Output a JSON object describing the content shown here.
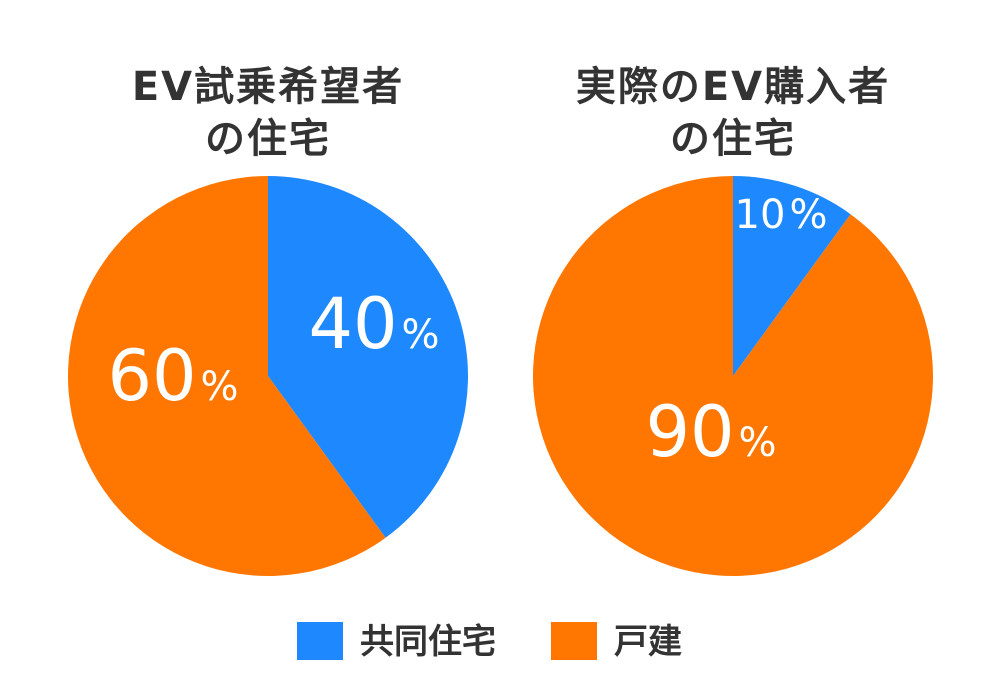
{
  "legend": [
    {
      "label": "共同住宅",
      "color": "#1e88ff"
    },
    {
      "label": "戸建",
      "color": "#ff7700"
    }
  ],
  "chart_data": [
    {
      "type": "pie",
      "title_lines": [
        "EV試乗希望者",
        "の住宅"
      ],
      "slices": [
        {
          "name": "共同住宅",
          "value": 40,
          "label_num": "40",
          "label_unit": "%",
          "color": "#1e88ff"
        },
        {
          "name": "戸建",
          "value": 60,
          "label_num": "60",
          "label_unit": "%",
          "color": "#ff7700"
        }
      ],
      "start_angle_deg": 0,
      "direction": "clockwise"
    },
    {
      "type": "pie",
      "title_lines": [
        "実際のEV購入者",
        "の住宅"
      ],
      "slices": [
        {
          "name": "共同住宅",
          "value": 10,
          "label_num": "10",
          "label_unit": "%",
          "color": "#1e88ff"
        },
        {
          "name": "戸建",
          "value": 90,
          "label_num": "90",
          "label_unit": "%",
          "color": "#ff7700"
        }
      ],
      "start_angle_deg": 0,
      "direction": "clockwise"
    }
  ]
}
